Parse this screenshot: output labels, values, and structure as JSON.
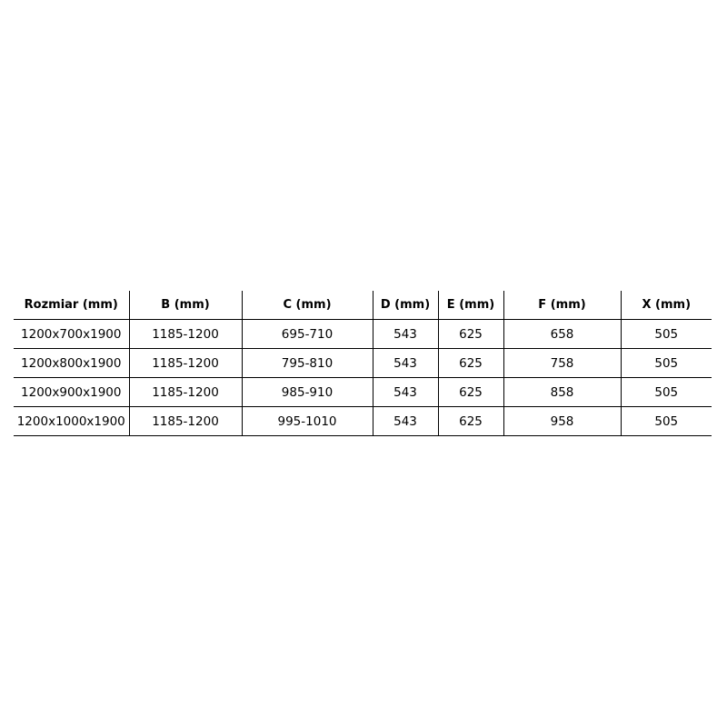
{
  "table": {
    "headers": [
      "Rozmiar (mm)",
      "B (mm)",
      "C (mm)",
      "D (mm)",
      "E (mm)",
      "F (mm)",
      "X (mm)"
    ],
    "rows": [
      [
        "1200x700x1900",
        "1185-1200",
        "695-710",
        "543",
        "625",
        "658",
        "505"
      ],
      [
        "1200x800x1900",
        "1185-1200",
        "795-810",
        "543",
        "625",
        "758",
        "505"
      ],
      [
        "1200x900x1900",
        "1185-1200",
        "985-910",
        "543",
        "625",
        "858",
        "505"
      ],
      [
        "1200x1000x1900",
        "1185-1200",
        "995-1010",
        "543",
        "625",
        "958",
        "505"
      ]
    ]
  }
}
